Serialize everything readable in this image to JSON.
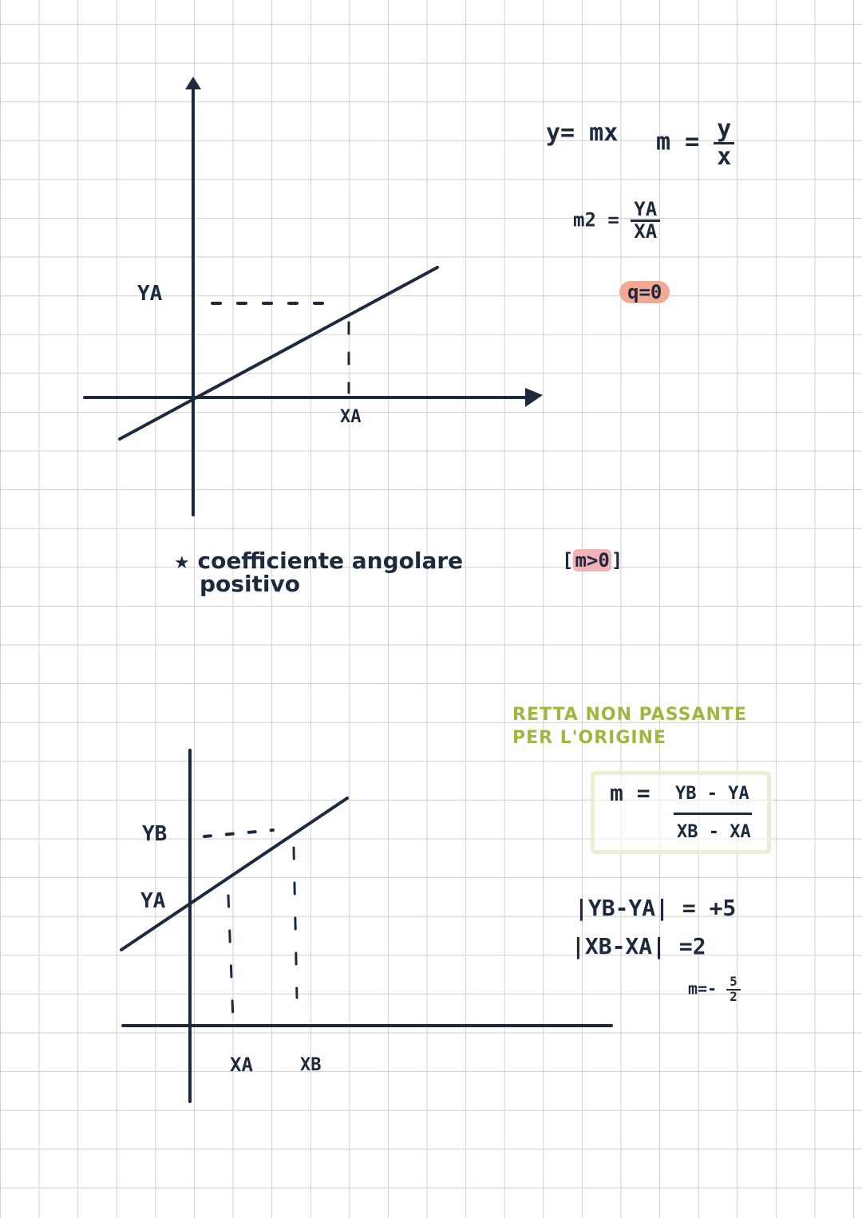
{
  "graph1": {
    "y_label": "YA",
    "x_label": "XA"
  },
  "note1": {
    "star": "★",
    "line1": "coefficiente angolare",
    "line2": "positivo"
  },
  "formulas_top": {
    "eq1": "y= mx",
    "m_def_lhs": "m =",
    "m_def_num": "y",
    "m_def_den": "x",
    "m2_lhs": "m2 =",
    "m2_num": "YA",
    "m2_den": "XA",
    "q_eq": "q=0",
    "m_cond_open": "[",
    "m_cond": "m>0",
    "m_cond_close": "]"
  },
  "section2_title": {
    "line1": "RETTA NON PASSANTE",
    "line2": "PER L'ORIGINE"
  },
  "slope_box": {
    "lhs": "m =",
    "num": "YB - YA",
    "den": "XB - XA"
  },
  "calc": {
    "line1": "|YB-YA| = +5",
    "line2": "|XB-XA| =2",
    "result_lhs": "m=-",
    "result_num": "5",
    "result_den": "2"
  },
  "graph2": {
    "yb_label": "YB",
    "ya_label": "YA",
    "xa_label": "XA",
    "xb_label": "XB"
  },
  "colors": {
    "ink": "#1d2a3e",
    "highlight_orange": "#f2a893",
    "highlight_pink": "#f2b2b8",
    "title_green": "#a4b440",
    "box_border": "#e9efd2"
  }
}
